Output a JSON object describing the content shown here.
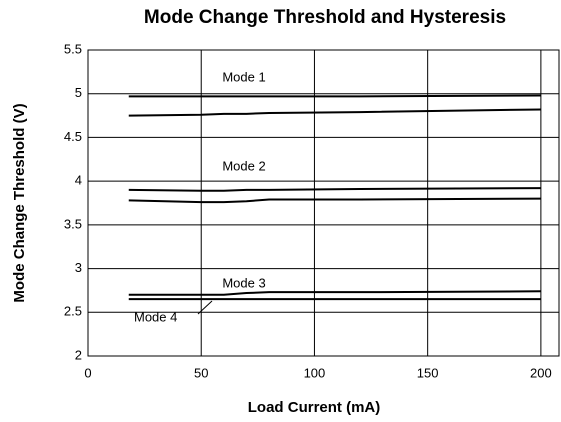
{
  "chart_data": {
    "type": "line",
    "title": "Mode Change Threshold and Hysteresis",
    "x_label": "Load Current (mA)",
    "y_label": "Mode Change Threshold (V)",
    "x": [
      18,
      50,
      60,
      70,
      80,
      120,
      200
    ],
    "series": [
      {
        "color": "#000000",
        "values": [
          4.97,
          4.97,
          4.97,
          4.97,
          4.97,
          4.97,
          4.98
        ]
      },
      {
        "color": "#000000",
        "values": [
          4.75,
          4.76,
          4.77,
          4.77,
          4.78,
          4.79,
          4.82
        ]
      },
      {
        "color": "#000000",
        "values": [
          3.9,
          3.89,
          3.89,
          3.9,
          3.9,
          3.91,
          3.92
        ]
      },
      {
        "color": "#000000",
        "values": [
          3.78,
          3.76,
          3.76,
          3.77,
          3.79,
          3.79,
          3.8
        ]
      },
      {
        "color": "#000000",
        "values": [
          2.7,
          2.7,
          2.7,
          2.72,
          2.73,
          2.73,
          2.74
        ]
      },
      {
        "color": "#000000",
        "values": [
          2.65,
          2.65,
          2.65,
          2.65,
          2.65,
          2.65,
          2.65
        ]
      }
    ],
    "annotations": [
      "Mode 1",
      "Mode 2",
      "Mode 3",
      "Mode 4"
    ],
    "xlim": [
      0,
      208
    ],
    "xticks": [
      0,
      50,
      100,
      150,
      200
    ],
    "ylim": [
      2,
      5.5
    ],
    "yticks": [
      2,
      2.5,
      3,
      3.5,
      4,
      4.5,
      5,
      5.5
    ],
    "grid": true
  }
}
